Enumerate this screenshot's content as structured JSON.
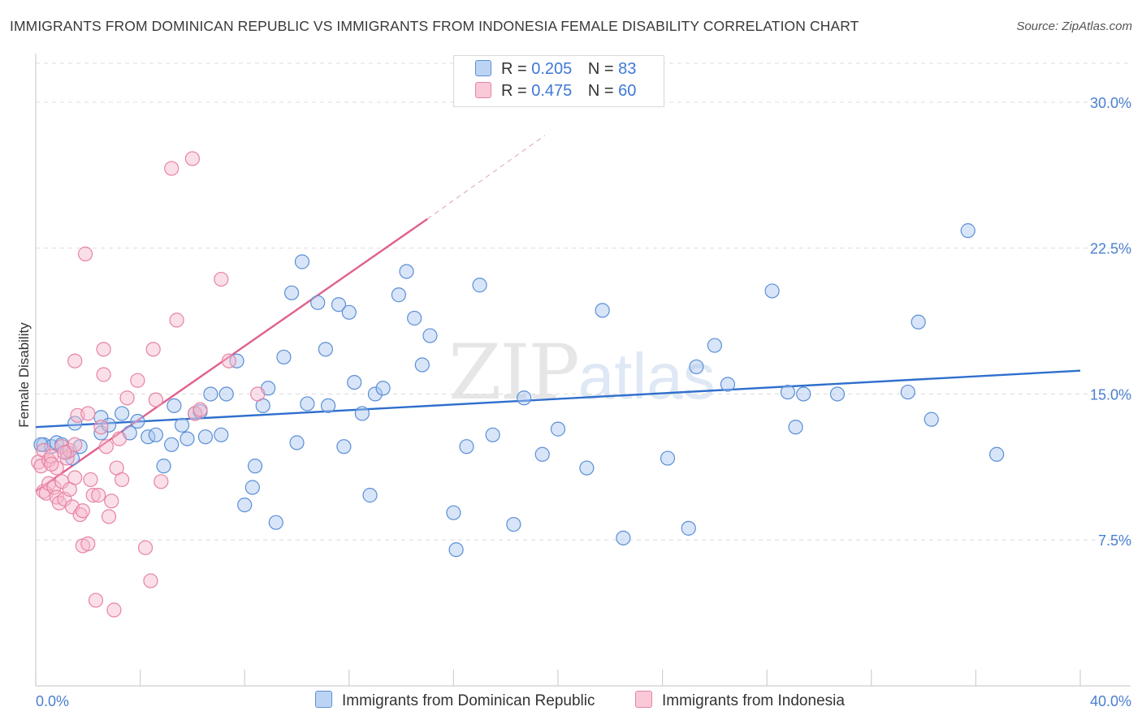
{
  "title": "IMMIGRANTS FROM DOMINICAN REPUBLIC VS IMMIGRANTS FROM INDONESIA FEMALE DISABILITY CORRELATION CHART",
  "source": "Source: ZipAtlas.com",
  "watermark": {
    "zip": "ZIP",
    "atlas": "atlas"
  },
  "legend": {
    "rows": [
      {
        "r_label": "R =",
        "r_value": "0.205",
        "n_label": "N =",
        "n_value": "83"
      },
      {
        "r_label": "R =",
        "r_value": "0.475",
        "n_label": "N =",
        "n_value": "60"
      }
    ]
  },
  "colors": {
    "series1_fill": "#a9c6ef",
    "series1_stroke": "#5b8fd6",
    "series1_line": "#2f6fcc",
    "series2_fill": "#f6b8cb",
    "series2_stroke": "#e783a3",
    "series2_line": "#e0608e",
    "tick": "#4a7fd0",
    "grid": "#dcdcdc"
  },
  "chart_data": {
    "type": "scatter",
    "title": "IMMIGRANTS FROM DOMINICAN REPUBLIC VS IMMIGRANTS FROM INDONESIA FEMALE DISABILITY CORRELATION CHART",
    "xlabel": "",
    "ylabel": "Female Disability",
    "xlim": [
      0,
      40
    ],
    "ylim": [
      0,
      32
    ],
    "x_ticks": [
      {
        "value": 0,
        "label": "0.0%"
      },
      {
        "value": 40,
        "label": "40.0%"
      }
    ],
    "y_ticks": [
      {
        "value": 7.5,
        "label": "7.5%"
      },
      {
        "value": 15,
        "label": "15.0%"
      },
      {
        "value": 22.5,
        "label": "22.5%"
      },
      {
        "value": 30,
        "label": "30.0%"
      }
    ],
    "grid": true,
    "legend_position": "top-center",
    "series": [
      {
        "name": "Immigrants from Dominican Republic",
        "color": "#a9c6ef",
        "R": 0.205,
        "N": 83,
        "trend": {
          "x": [
            0,
            40
          ],
          "y": [
            13.3,
            16.2
          ],
          "dashed_extension": false
        },
        "points": [
          [
            0.3,
            12.4
          ],
          [
            0.6,
            12.3
          ],
          [
            0.8,
            12.5
          ],
          [
            1.0,
            12.4
          ],
          [
            1.2,
            12.0
          ],
          [
            1.4,
            11.7
          ],
          [
            1.5,
            13.5
          ],
          [
            1.7,
            12.3
          ],
          [
            2.5,
            13.0
          ],
          [
            2.5,
            13.8
          ],
          [
            2.8,
            13.4
          ],
          [
            3.3,
            14.0
          ],
          [
            3.6,
            13.0
          ],
          [
            3.9,
            13.6
          ],
          [
            4.3,
            12.8
          ],
          [
            4.6,
            12.9
          ],
          [
            4.9,
            11.3
          ],
          [
            5.2,
            12.4
          ],
          [
            5.3,
            14.4
          ],
          [
            5.6,
            13.4
          ],
          [
            5.8,
            12.7
          ],
          [
            6.1,
            14.0
          ],
          [
            6.3,
            14.1
          ],
          [
            6.5,
            12.8
          ],
          [
            6.7,
            15.0
          ],
          [
            7.1,
            12.9
          ],
          [
            7.3,
            15.0
          ],
          [
            7.7,
            16.7
          ],
          [
            8.0,
            9.3
          ],
          [
            8.3,
            10.2
          ],
          [
            8.4,
            11.3
          ],
          [
            8.7,
            14.4
          ],
          [
            8.9,
            15.3
          ],
          [
            9.2,
            8.4
          ],
          [
            9.5,
            16.9
          ],
          [
            9.8,
            20.2
          ],
          [
            10.0,
            12.5
          ],
          [
            10.2,
            21.8
          ],
          [
            10.4,
            14.5
          ],
          [
            10.8,
            19.7
          ],
          [
            11.1,
            17.3
          ],
          [
            11.2,
            14.4
          ],
          [
            11.6,
            19.6
          ],
          [
            11.8,
            12.3
          ],
          [
            12.0,
            19.2
          ],
          [
            12.2,
            15.6
          ],
          [
            12.5,
            14.0
          ],
          [
            12.8,
            9.8
          ],
          [
            13.0,
            15.0
          ],
          [
            13.3,
            15.3
          ],
          [
            13.9,
            20.1
          ],
          [
            14.2,
            21.3
          ],
          [
            14.5,
            18.9
          ],
          [
            14.8,
            16.5
          ],
          [
            15.1,
            18.0
          ],
          [
            16.0,
            8.9
          ],
          [
            16.1,
            7.0
          ],
          [
            16.5,
            12.3
          ],
          [
            17.0,
            20.6
          ],
          [
            17.5,
            12.9
          ],
          [
            18.3,
            8.3
          ],
          [
            18.7,
            14.8
          ],
          [
            19.4,
            11.9
          ],
          [
            20.0,
            13.2
          ],
          [
            21.1,
            11.2
          ],
          [
            21.7,
            19.3
          ],
          [
            22.5,
            7.6
          ],
          [
            24.2,
            11.7
          ],
          [
            25.0,
            8.1
          ],
          [
            25.3,
            16.4
          ],
          [
            26.0,
            17.5
          ],
          [
            26.5,
            15.5
          ],
          [
            28.2,
            20.3
          ],
          [
            28.8,
            15.1
          ],
          [
            29.1,
            13.3
          ],
          [
            29.4,
            15.0
          ],
          [
            30.7,
            15.0
          ],
          [
            33.4,
            15.1
          ],
          [
            33.8,
            18.7
          ],
          [
            34.3,
            13.7
          ],
          [
            35.7,
            23.4
          ],
          [
            36.8,
            11.9
          ],
          [
            0.2,
            12.4
          ]
        ]
      },
      {
        "name": "Immigrants from Indonesia",
        "color": "#f6b8cb",
        "R": 0.475,
        "N": 60,
        "trend": {
          "x": [
            0,
            15
          ],
          "y": [
            10.0,
            24.0
          ],
          "dashed_extension": true,
          "dashed_to": [
            19.5,
            28.3
          ]
        },
        "points": [
          [
            0.1,
            11.5
          ],
          [
            0.2,
            11.3
          ],
          [
            0.3,
            10.0
          ],
          [
            0.3,
            12.1
          ],
          [
            0.4,
            9.9
          ],
          [
            0.5,
            10.4
          ],
          [
            0.5,
            11.6
          ],
          [
            0.6,
            11.8
          ],
          [
            0.7,
            10.2
          ],
          [
            0.8,
            9.7
          ],
          [
            0.8,
            11.2
          ],
          [
            0.9,
            9.4
          ],
          [
            1.0,
            10.5
          ],
          [
            1.0,
            12.3
          ],
          [
            1.1,
            9.6
          ],
          [
            1.2,
            11.7
          ],
          [
            1.3,
            12.1
          ],
          [
            1.3,
            10.1
          ],
          [
            1.4,
            9.2
          ],
          [
            1.5,
            10.7
          ],
          [
            1.5,
            12.4
          ],
          [
            1.5,
            16.7
          ],
          [
            1.6,
            13.9
          ],
          [
            1.7,
            8.8
          ],
          [
            1.8,
            7.2
          ],
          [
            1.8,
            9.0
          ],
          [
            1.9,
            22.2
          ],
          [
            2.0,
            14.0
          ],
          [
            2.0,
            7.3
          ],
          [
            2.1,
            10.6
          ],
          [
            2.2,
            9.8
          ],
          [
            2.3,
            4.4
          ],
          [
            2.4,
            9.8
          ],
          [
            2.6,
            17.3
          ],
          [
            2.6,
            16.0
          ],
          [
            2.7,
            12.3
          ],
          [
            2.8,
            8.7
          ],
          [
            2.9,
            9.5
          ],
          [
            3.0,
            3.9
          ],
          [
            3.1,
            11.2
          ],
          [
            3.2,
            12.7
          ],
          [
            3.3,
            10.6
          ],
          [
            3.5,
            14.8
          ],
          [
            3.9,
            15.7
          ],
          [
            4.2,
            7.1
          ],
          [
            4.4,
            5.4
          ],
          [
            4.5,
            17.3
          ],
          [
            4.6,
            14.7
          ],
          [
            4.8,
            10.5
          ],
          [
            5.2,
            26.6
          ],
          [
            5.4,
            18.8
          ],
          [
            6.0,
            27.1
          ],
          [
            6.1,
            14.0
          ],
          [
            6.3,
            14.2
          ],
          [
            7.1,
            20.9
          ],
          [
            7.4,
            16.7
          ],
          [
            8.5,
            15.0
          ],
          [
            0.6,
            11.4
          ],
          [
            1.1,
            12.0
          ],
          [
            2.5,
            13.3
          ]
        ]
      }
    ]
  },
  "bottom_legend": [
    {
      "label": "Immigrants from Dominican Republic"
    },
    {
      "label": "Immigrants from Indonesia"
    }
  ]
}
